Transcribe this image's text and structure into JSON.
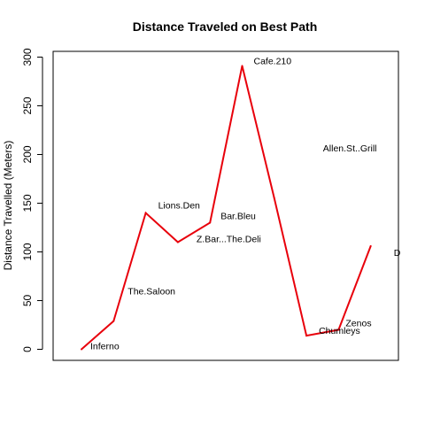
{
  "chart_data": {
    "type": "line",
    "title": "Distance Traveled on Best Path",
    "xlabel": "",
    "ylabel": "Distance Travelled (Meters)",
    "ylim": [
      0,
      300
    ],
    "yticks": [
      0,
      50,
      100,
      150,
      200,
      250,
      300
    ],
    "grid": false,
    "line_color": "#e8000b",
    "x": [
      1,
      2,
      3,
      4,
      5,
      6,
      7,
      8,
      9,
      10
    ],
    "values": [
      0,
      29,
      140,
      110,
      130,
      291,
      155,
      14,
      20,
      106
    ],
    "point_labels": [
      "Inferno",
      "The.Saloon",
      "Lions.Den",
      "Z.Bar...The.Deli",
      "Bar.Bleu",
      "Cafe.210",
      "Allen.St..Grill",
      "Chumleys",
      "Zenos",
      "D"
    ]
  }
}
